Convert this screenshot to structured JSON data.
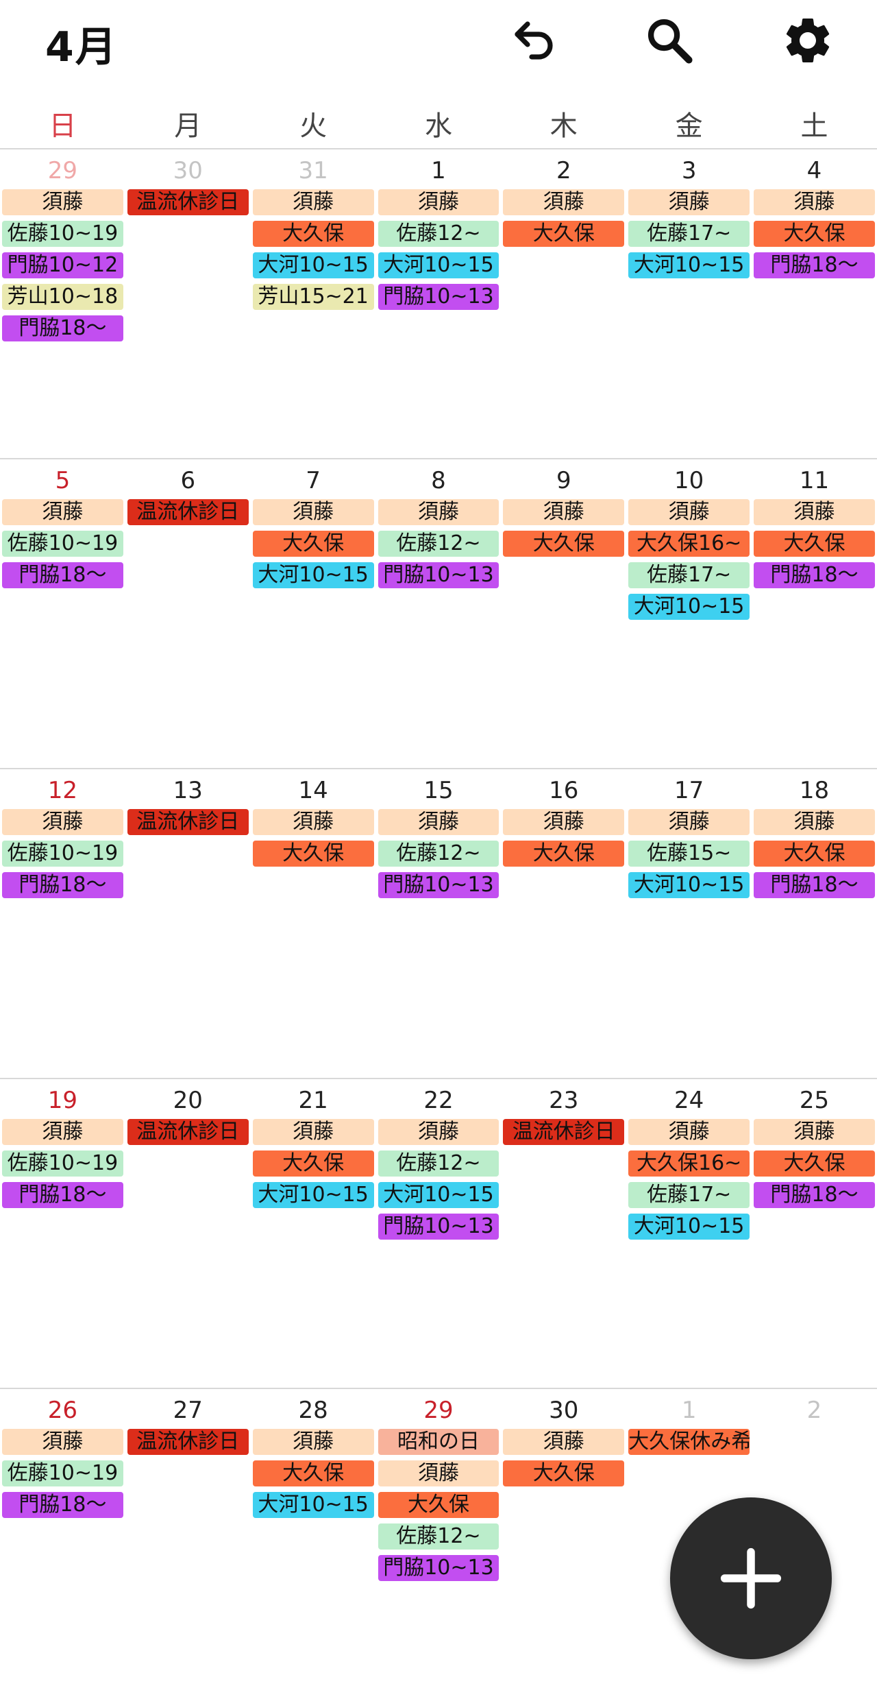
{
  "header": {
    "month_title": "4月"
  },
  "icons": {
    "undo": "undo-icon",
    "search": "search-icon",
    "settings": "gear-icon",
    "add": "plus-icon"
  },
  "colors": {
    "peach": "#fedcbc",
    "red": "#dc2d1a",
    "orange": "#fb6e3e",
    "green": "#bbedcb",
    "blue": "#3ed0f0",
    "purple": "#c24ef0",
    "khaki": "#eae9b0",
    "salmon": "#f8b29b",
    "sunday_text": "#c8202a",
    "fab": "#2b2b2b"
  },
  "weekdays": [
    "日",
    "月",
    "火",
    "水",
    "木",
    "金",
    "土"
  ],
  "weeks": [
    {
      "days": [
        {
          "num": "29",
          "other": true,
          "sun": true,
          "events": [
            {
              "label": "須藤",
              "color": "peach"
            },
            {
              "label": "佐藤10~19",
              "color": "green"
            },
            {
              "label": "門脇10~12",
              "color": "purple"
            },
            {
              "label": "芳山10~18",
              "color": "khaki"
            },
            {
              "label": "門脇18〜",
              "color": "purple"
            }
          ]
        },
        {
          "num": "30",
          "other": true,
          "events": [
            {
              "label": "温流休診日",
              "color": "red"
            }
          ]
        },
        {
          "num": "31",
          "other": true,
          "events": [
            {
              "label": "須藤",
              "color": "peach"
            },
            {
              "label": "大久保",
              "color": "orange"
            },
            {
              "label": "大河10~15",
              "color": "blue"
            },
            {
              "label": "芳山15~21",
              "color": "khaki"
            }
          ]
        },
        {
          "num": "1",
          "events": [
            {
              "label": "須藤",
              "color": "peach"
            },
            {
              "label": "佐藤12~",
              "color": "green"
            },
            {
              "label": "大河10~15",
              "color": "blue"
            },
            {
              "label": "門脇10~13",
              "color": "purple"
            }
          ]
        },
        {
          "num": "2",
          "events": [
            {
              "label": "須藤",
              "color": "peach"
            },
            {
              "label": "大久保",
              "color": "orange"
            }
          ]
        },
        {
          "num": "3",
          "events": [
            {
              "label": "須藤",
              "color": "peach"
            },
            {
              "label": "佐藤17~",
              "color": "green"
            },
            {
              "label": "大河10~15",
              "color": "blue"
            }
          ]
        },
        {
          "num": "4",
          "events": [
            {
              "label": "須藤",
              "color": "peach"
            },
            {
              "label": "大久保",
              "color": "orange"
            },
            {
              "label": "門脇18〜",
              "color": "purple"
            }
          ]
        }
      ]
    },
    {
      "days": [
        {
          "num": "5",
          "sun": true,
          "events": [
            {
              "label": "須藤",
              "color": "peach"
            },
            {
              "label": "佐藤10~19",
              "color": "green"
            },
            {
              "label": "門脇18〜",
              "color": "purple"
            }
          ]
        },
        {
          "num": "6",
          "events": [
            {
              "label": "温流休診日",
              "color": "red"
            }
          ]
        },
        {
          "num": "7",
          "events": [
            {
              "label": "須藤",
              "color": "peach"
            },
            {
              "label": "大久保",
              "color": "orange"
            },
            {
              "label": "大河10~15",
              "color": "blue"
            }
          ]
        },
        {
          "num": "8",
          "events": [
            {
              "label": "須藤",
              "color": "peach"
            },
            {
              "label": "佐藤12~",
              "color": "green"
            },
            {
              "label": "門脇10~13",
              "color": "purple"
            }
          ]
        },
        {
          "num": "9",
          "events": [
            {
              "label": "須藤",
              "color": "peach"
            },
            {
              "label": "大久保",
              "color": "orange"
            }
          ]
        },
        {
          "num": "10",
          "events": [
            {
              "label": "須藤",
              "color": "peach"
            },
            {
              "label": "大久保16~",
              "color": "orange"
            },
            {
              "label": "佐藤17~",
              "color": "green"
            },
            {
              "label": "大河10~15",
              "color": "blue"
            }
          ]
        },
        {
          "num": "11",
          "events": [
            {
              "label": "須藤",
              "color": "peach"
            },
            {
              "label": "大久保",
              "color": "orange"
            },
            {
              "label": "門脇18〜",
              "color": "purple"
            }
          ]
        }
      ]
    },
    {
      "days": [
        {
          "num": "12",
          "sun": true,
          "events": [
            {
              "label": "須藤",
              "color": "peach"
            },
            {
              "label": "佐藤10~19",
              "color": "green"
            },
            {
              "label": "門脇18〜",
              "color": "purple"
            }
          ]
        },
        {
          "num": "13",
          "events": [
            {
              "label": "温流休診日",
              "color": "red"
            }
          ]
        },
        {
          "num": "14",
          "events": [
            {
              "label": "須藤",
              "color": "peach"
            },
            {
              "label": "大久保",
              "color": "orange"
            }
          ]
        },
        {
          "num": "15",
          "events": [
            {
              "label": "須藤",
              "color": "peach"
            },
            {
              "label": "佐藤12~",
              "color": "green"
            },
            {
              "label": "門脇10~13",
              "color": "purple"
            }
          ]
        },
        {
          "num": "16",
          "events": [
            {
              "label": "須藤",
              "color": "peach"
            },
            {
              "label": "大久保",
              "color": "orange"
            }
          ]
        },
        {
          "num": "17",
          "events": [
            {
              "label": "須藤",
              "color": "peach"
            },
            {
              "label": "佐藤15~",
              "color": "green"
            },
            {
              "label": "大河10~15",
              "color": "blue"
            }
          ]
        },
        {
          "num": "18",
          "events": [
            {
              "label": "須藤",
              "color": "peach"
            },
            {
              "label": "大久保",
              "color": "orange"
            },
            {
              "label": "門脇18〜",
              "color": "purple"
            }
          ]
        }
      ]
    },
    {
      "days": [
        {
          "num": "19",
          "sun": true,
          "events": [
            {
              "label": "須藤",
              "color": "peach"
            },
            {
              "label": "佐藤10~19",
              "color": "green"
            },
            {
              "label": "門脇18〜",
              "color": "purple"
            }
          ]
        },
        {
          "num": "20",
          "events": [
            {
              "label": "温流休診日",
              "color": "red"
            }
          ]
        },
        {
          "num": "21",
          "events": [
            {
              "label": "須藤",
              "color": "peach"
            },
            {
              "label": "大久保",
              "color": "orange"
            },
            {
              "label": "大河10~15",
              "color": "blue"
            }
          ]
        },
        {
          "num": "22",
          "events": [
            {
              "label": "須藤",
              "color": "peach"
            },
            {
              "label": "佐藤12~",
              "color": "green"
            },
            {
              "label": "大河10~15",
              "color": "blue"
            },
            {
              "label": "門脇10~13",
              "color": "purple"
            }
          ]
        },
        {
          "num": "23",
          "events": [
            {
              "label": "温流休診日",
              "color": "red"
            }
          ]
        },
        {
          "num": "24",
          "events": [
            {
              "label": "須藤",
              "color": "peach"
            },
            {
              "label": "大久保16~",
              "color": "orange"
            },
            {
              "label": "佐藤17~",
              "color": "green"
            },
            {
              "label": "大河10~15",
              "color": "blue"
            }
          ]
        },
        {
          "num": "25",
          "events": [
            {
              "label": "須藤",
              "color": "peach"
            },
            {
              "label": "大久保",
              "color": "orange"
            },
            {
              "label": "門脇18〜",
              "color": "purple"
            }
          ]
        }
      ]
    },
    {
      "days": [
        {
          "num": "26",
          "sun": true,
          "events": [
            {
              "label": "須藤",
              "color": "peach"
            },
            {
              "label": "佐藤10~19",
              "color": "green"
            },
            {
              "label": "門脇18〜",
              "color": "purple"
            }
          ]
        },
        {
          "num": "27",
          "events": [
            {
              "label": "温流休診日",
              "color": "red"
            }
          ]
        },
        {
          "num": "28",
          "events": [
            {
              "label": "須藤",
              "color": "peach"
            },
            {
              "label": "大久保",
              "color": "orange"
            },
            {
              "label": "大河10~15",
              "color": "blue"
            }
          ]
        },
        {
          "num": "29",
          "sun": true,
          "events": [
            {
              "label": "昭和の日",
              "color": "salmon"
            },
            {
              "label": "須藤",
              "color": "peach"
            },
            {
              "label": "大久保",
              "color": "orange"
            },
            {
              "label": "佐藤12~",
              "color": "green"
            },
            {
              "label": "門脇10~13",
              "color": "purple"
            }
          ]
        },
        {
          "num": "30",
          "events": [
            {
              "label": "須藤",
              "color": "peach"
            },
            {
              "label": "大久保",
              "color": "orange"
            }
          ]
        },
        {
          "num": "1",
          "other": true,
          "events": [
            {
              "label": "大久保休み希",
              "color": "orange"
            }
          ]
        },
        {
          "num": "2",
          "other": true,
          "events": []
        }
      ]
    }
  ]
}
